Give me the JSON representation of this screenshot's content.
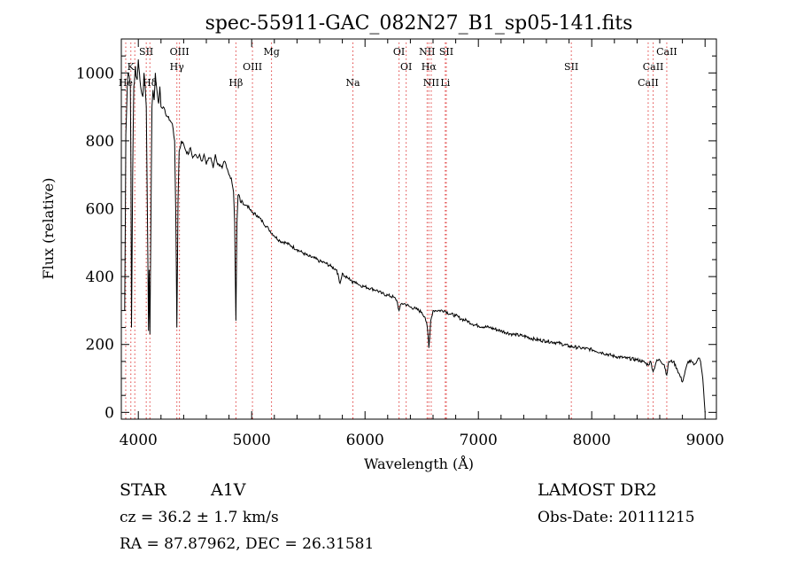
{
  "chart_data": {
    "type": "line",
    "title": "spec-55911-GAC_082N27_B1_sp05-141.fits",
    "xlabel": "Wavelength (Å)",
    "ylabel": "Flux (relative)",
    "xlim": [
      3850,
      9100
    ],
    "ylim": [
      -20,
      1100
    ],
    "x_ticks": [
      4000,
      5000,
      6000,
      7000,
      8000,
      9000
    ],
    "y_ticks": [
      0,
      200,
      400,
      600,
      800,
      1000
    ],
    "series": [
      {
        "x": [
          3880,
          3890,
          3900,
          3905,
          3910,
          3920,
          3930,
          3935,
          3940,
          3950,
          3960,
          3965,
          3970,
          3975,
          3980,
          3990,
          4000,
          4010,
          4020,
          4030,
          4040,
          4050,
          4060,
          4070,
          4080,
          4090,
          4095,
          4102,
          4110,
          4120,
          4130,
          4140,
          4150,
          4160,
          4170,
          4180,
          4190,
          4200,
          4220,
          4240,
          4260,
          4280,
          4300,
          4320,
          4330,
          4340,
          4350,
          4360,
          4370,
          4380,
          4400,
          4420,
          4440,
          4460,
          4480,
          4500,
          4520,
          4540,
          4560,
          4580,
          4600,
          4620,
          4640,
          4660,
          4680,
          4700,
          4720,
          4740,
          4760,
          4780,
          4800,
          4820,
          4840,
          4850,
          4855,
          4861,
          4866,
          4870,
          4880,
          4890,
          4900,
          4920,
          4940,
          4960,
          4980,
          5000,
          5050,
          5100,
          5150,
          5200,
          5250,
          5300,
          5350,
          5400,
          5450,
          5500,
          5550,
          5600,
          5650,
          5700,
          5750,
          5780,
          5800,
          5820,
          5850,
          5880,
          5890,
          5900,
          5920,
          5950,
          6000,
          6050,
          6100,
          6150,
          6200,
          6250,
          6280,
          6300,
          6320,
          6350,
          6400,
          6450,
          6500,
          6530,
          6550,
          6560,
          6563,
          6570,
          6580,
          6600,
          6620,
          6650,
          6700,
          6750,
          6800,
          6850,
          6900,
          6950,
          7000,
          7100,
          7200,
          7300,
          7400,
          7500,
          7600,
          7700,
          7800,
          7900,
          8000,
          8100,
          8200,
          8300,
          8400,
          8450,
          8498,
          8520,
          8542,
          8570,
          8600,
          8640,
          8662,
          8680,
          8720,
          8750,
          8800,
          8850,
          8880,
          8900,
          8920,
          8940,
          8950,
          8960,
          8980,
          9000
        ],
        "y": [
          300,
          820,
          930,
          980,
          1000,
          990,
          960,
          700,
          250,
          700,
          960,
          970,
          1000,
          1020,
          990,
          980,
          1040,
          1000,
          960,
          940,
          930,
          1000,
          960,
          900,
          600,
          240,
          420,
          230,
          520,
          900,
          950,
          920,
          1000,
          960,
          930,
          910,
          960,
          900,
          900,
          880,
          870,
          860,
          850,
          800,
          600,
          250,
          620,
          770,
          780,
          800,
          790,
          770,
          760,
          780,
          750,
          760,
          750,
          760,
          740,
          760,
          730,
          750,
          750,
          720,
          760,
          730,
          730,
          720,
          740,
          720,
          700,
          690,
          650,
          560,
          420,
          270,
          420,
          560,
          640,
          640,
          620,
          620,
          610,
          610,
          600,
          590,
          580,
          560,
          540,
          520,
          505,
          500,
          490,
          480,
          470,
          460,
          455,
          445,
          440,
          430,
          420,
          380,
          410,
          400,
          395,
          390,
          380,
          385,
          385,
          375,
          370,
          365,
          360,
          350,
          345,
          340,
          330,
          300,
          320,
          320,
          310,
          305,
          295,
          280,
          250,
          210,
          190,
          220,
          270,
          300,
          300,
          300,
          300,
          290,
          285,
          275,
          270,
          260,
          255,
          250,
          240,
          230,
          225,
          215,
          210,
          205,
          195,
          190,
          185,
          175,
          165,
          160,
          155,
          150,
          140,
          150,
          120,
          150,
          155,
          140,
          110,
          150,
          150,
          130,
          90,
          150,
          150,
          140,
          145,
          160,
          160,
          150,
          100,
          0
        ]
      }
    ],
    "line_labels": [
      {
        "text": "SII",
        "x": 4070,
        "row": 1
      },
      {
        "text": "OIII",
        "x": 4363,
        "row": 1
      },
      {
        "text": "Mg",
        "x": 5175,
        "row": 1
      },
      {
        "text": "OI",
        "x": 6300,
        "row": 1
      },
      {
        "text": "NII",
        "x": 6548,
        "row": 1
      },
      {
        "text": "SII",
        "x": 6717,
        "row": 1
      },
      {
        "text": "CaII",
        "x": 8662,
        "row": 1
      },
      {
        "text": "K",
        "x": 3934,
        "row": 2
      },
      {
        "text": "Hγ",
        "x": 4340,
        "row": 2
      },
      {
        "text": "OIII",
        "x": 5007,
        "row": 2
      },
      {
        "text": "OI",
        "x": 6363,
        "row": 2
      },
      {
        "text": "Hα",
        "x": 6563,
        "row": 2
      },
      {
        "text": "SII",
        "x": 7820,
        "row": 2
      },
      {
        "text": "CaII",
        "x": 8542,
        "row": 2
      },
      {
        "text": "He",
        "x": 3889,
        "row": 3
      },
      {
        "text": "Hδ",
        "x": 4102,
        "row": 3
      },
      {
        "text": "Hβ",
        "x": 4861,
        "row": 3
      },
      {
        "text": "Na",
        "x": 5893,
        "row": 3
      },
      {
        "text": "NII",
        "x": 6584,
        "row": 3
      },
      {
        "text": "Li",
        "x": 6708,
        "row": 3
      },
      {
        "text": "CaII",
        "x": 8498,
        "row": 3
      }
    ],
    "marker_lines": [
      3889,
      3934,
      3969,
      4070,
      4102,
      4340,
      4363,
      4861,
      5007,
      5175,
      5893,
      6300,
      6363,
      6548,
      6563,
      6584,
      6708,
      6717,
      7820,
      8498,
      8542,
      8662
    ],
    "grid": false
  },
  "info": {
    "object_class": "STAR",
    "subclass": "A1V",
    "cz": "cz = 36.2 ± 1.7 km/s",
    "coords": "RA =  87.87962, DEC =  26.31581",
    "survey": "LAMOST DR2",
    "obs_date": "Obs-Date: 20111215"
  },
  "colors": {
    "spectrum": "#000000",
    "markers": "#e04040",
    "axes": "#000000"
  }
}
